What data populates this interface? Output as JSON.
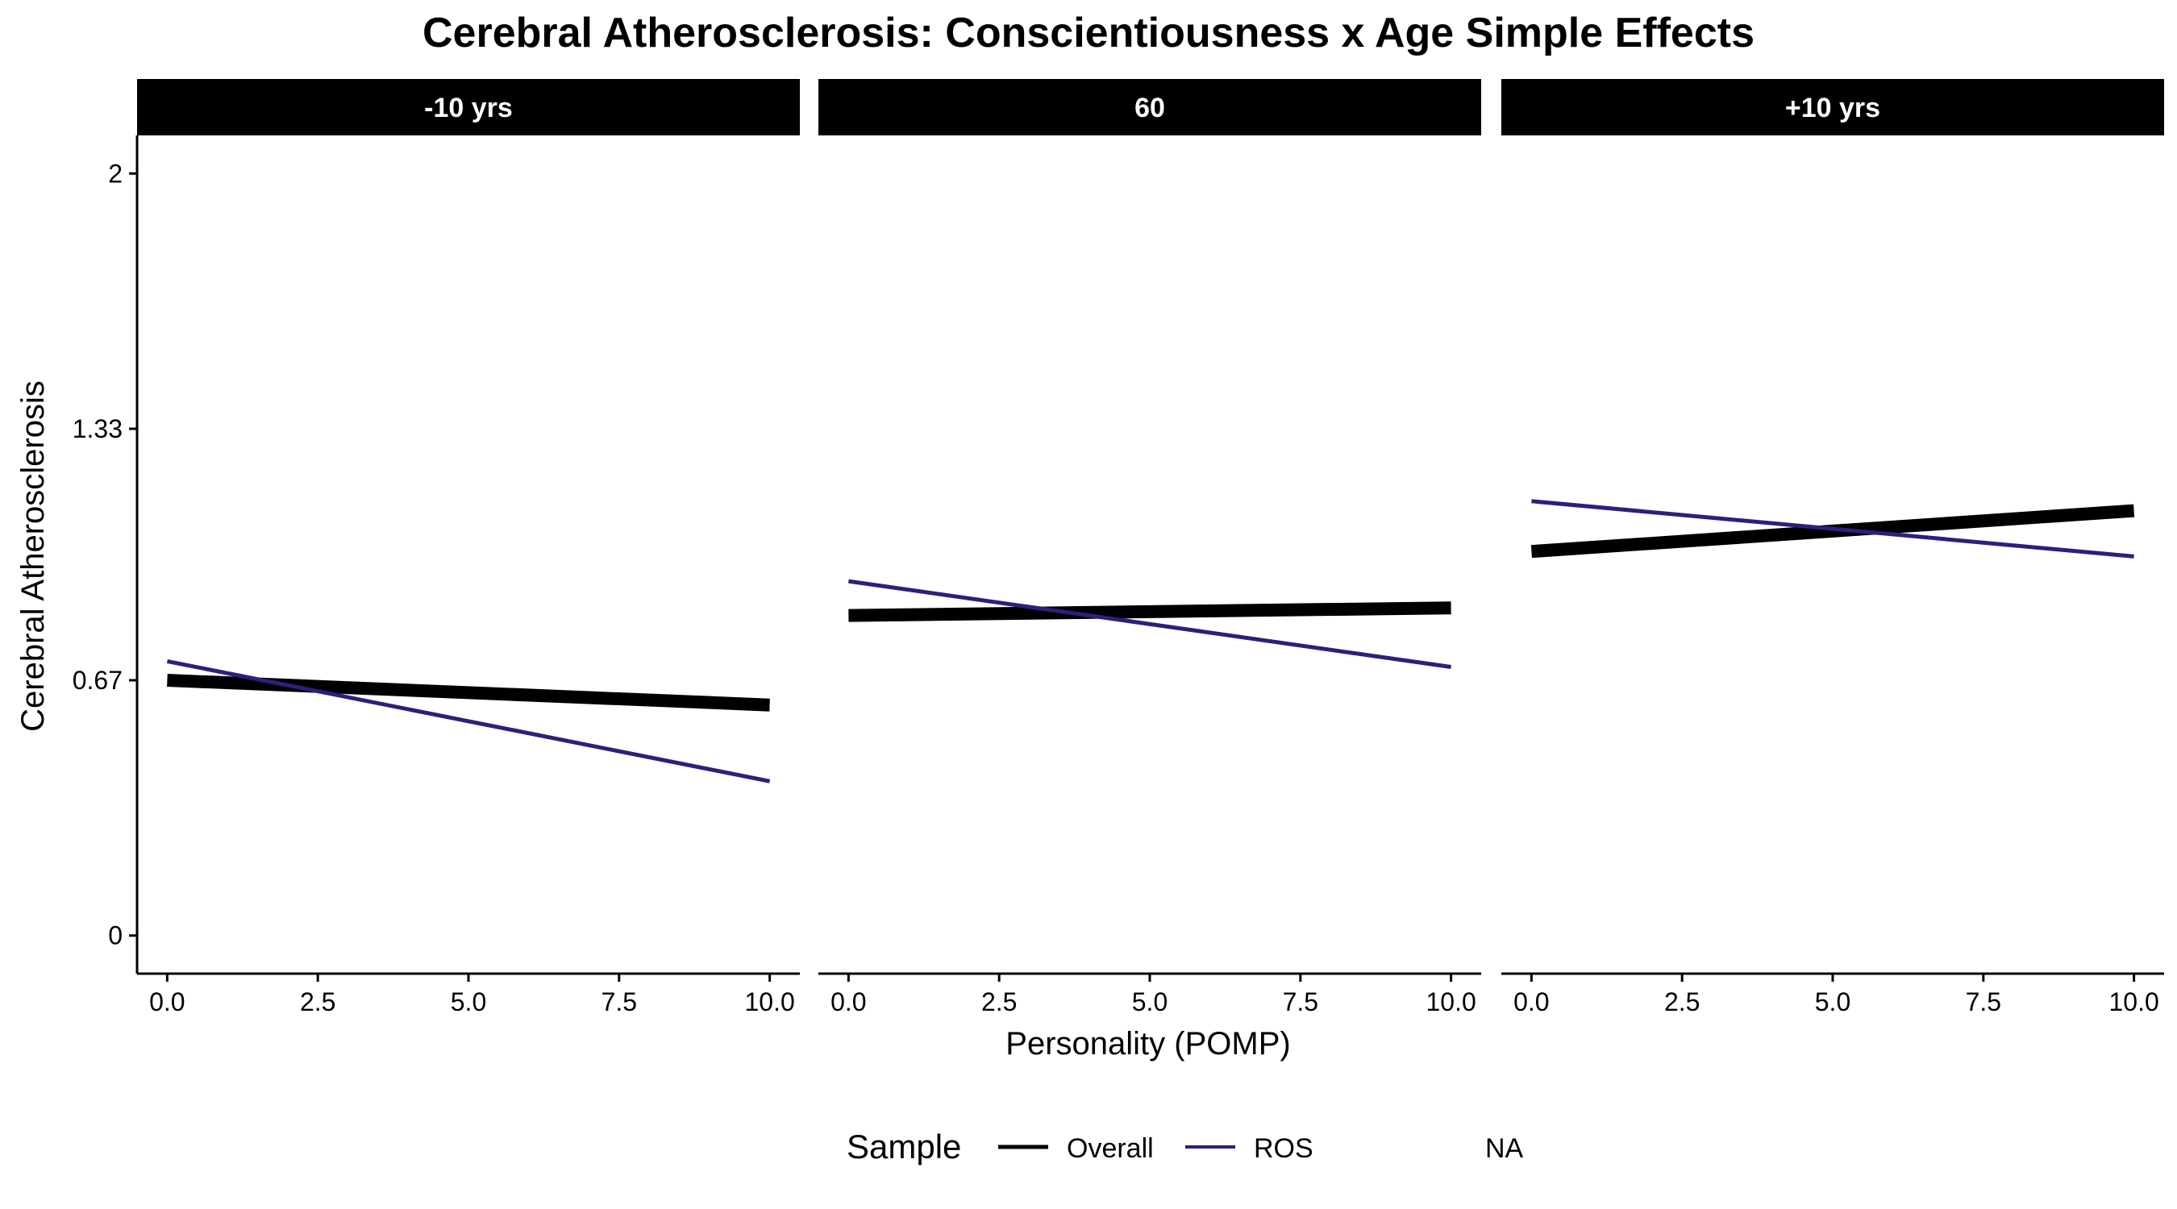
{
  "chart_data": {
    "type": "line",
    "title": "Cerebral Atherosclerosis: Conscientiousness x Age Simple Effects",
    "xlabel": "Personality (POMP)",
    "ylabel": "Cerebral Atherosclerosis",
    "xlim": [
      -0.5,
      10.5
    ],
    "ylim": [
      -0.1,
      2.1
    ],
    "x_ticks": [
      "0.0",
      "2.5",
      "5.0",
      "7.5",
      "10.0"
    ],
    "x_tick_values": [
      0,
      2.5,
      5,
      7.5,
      10
    ],
    "y_ticks": [
      "0",
      "0.67",
      "1.33",
      "2"
    ],
    "y_tick_values": [
      0,
      0.67,
      1.33,
      2
    ],
    "grid": false,
    "legend_position": "bottom",
    "legend": {
      "title": "Sample",
      "entries": [
        {
          "label": "Overall",
          "color": "#000000"
        },
        {
          "label": "ROS",
          "color": "#2e1f7a"
        },
        {
          "label": "NA",
          "color": null
        }
      ]
    },
    "panels": [
      {
        "label": "-10 yrs",
        "series": [
          {
            "name": "Overall",
            "color": "#000000",
            "x": [
              0,
              10
            ],
            "y": [
              0.67,
              0.605
            ]
          },
          {
            "name": "ROS",
            "color": "#2e1f7a",
            "x": [
              0,
              10
            ],
            "y": [
              0.72,
              0.405
            ]
          }
        ]
      },
      {
        "label": "60",
        "series": [
          {
            "name": "Overall",
            "color": "#000000",
            "x": [
              0,
              10
            ],
            "y": [
              0.84,
              0.86
            ]
          },
          {
            "name": "ROS",
            "color": "#2e1f7a",
            "x": [
              0,
              10
            ],
            "y": [
              0.93,
              0.705
            ]
          }
        ]
      },
      {
        "label": "+10 yrs",
        "series": [
          {
            "name": "Overall",
            "color": "#000000",
            "x": [
              0,
              10
            ],
            "y": [
              1.008,
              1.115
            ]
          },
          {
            "name": "ROS",
            "color": "#2e1f7a",
            "x": [
              0,
              10
            ],
            "y": [
              1.14,
              0.995
            ]
          }
        ]
      }
    ]
  }
}
